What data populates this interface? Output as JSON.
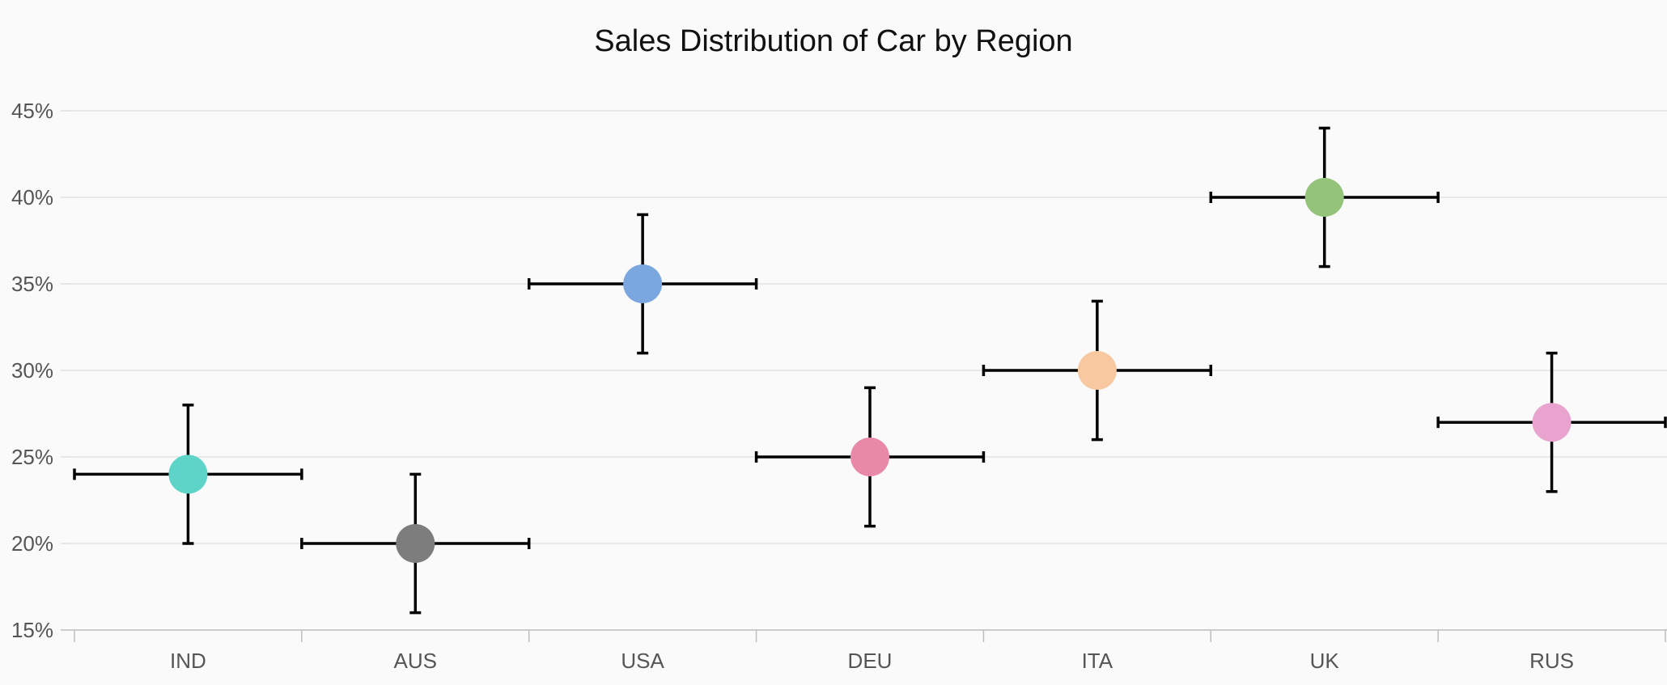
{
  "chart_data": {
    "type": "scatter",
    "title": "Sales Distribution of Car by Region",
    "xlabel": "",
    "ylabel": "",
    "categories": [
      "IND",
      "AUS",
      "USA",
      "DEU",
      "ITA",
      "UK",
      "RUS"
    ],
    "values": [
      24,
      20,
      35,
      25,
      30,
      40,
      27
    ],
    "y_error": [
      4,
      4,
      4,
      4,
      4,
      4,
      4
    ],
    "x_error_categories": 0.5,
    "point_colors": [
      "#5ed4c8",
      "#7d7d7d",
      "#7aa7e0",
      "#e889a8",
      "#f8c9a0",
      "#94c47a",
      "#e8a3cf"
    ],
    "ylim": [
      15,
      45
    ],
    "y_ticks": [
      15,
      20,
      25,
      30,
      35,
      40,
      45
    ],
    "y_tick_format": "{v}%",
    "grid": true,
    "legend": "none"
  },
  "style": {
    "error_bar_color": "#000000",
    "grid_color": "#e3e3e3",
    "axis_color": "#bdbdbd",
    "background": "#fafafa"
  }
}
